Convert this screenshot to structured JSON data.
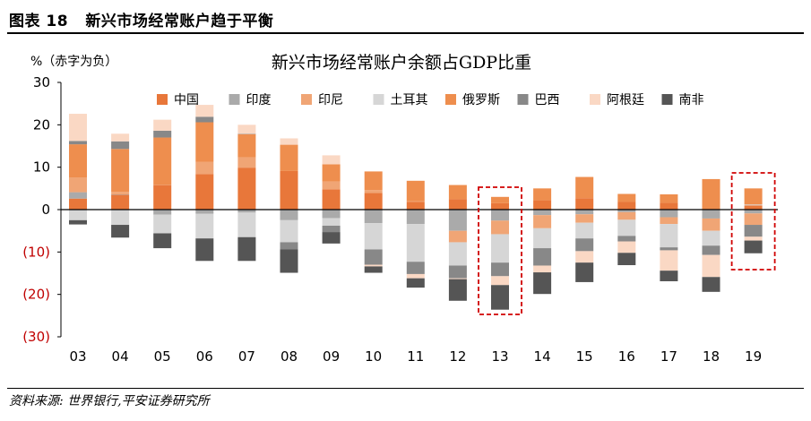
{
  "figure": {
    "label": "图表 18",
    "title": "新兴市场经常账户趋于平衡",
    "source": "资料来源: 世界银行,平安证券研究所"
  },
  "colors": {
    "China": "#E8773A",
    "India": "#AAAAAA",
    "Indonesia": "#F0A575",
    "Turkey": "#D6D6D6",
    "Russia": "#EE8E4E",
    "Brazil": "#888888",
    "Argentina": "#FAD8C4",
    "SouthAfrica": "#555555",
    "negative_label": "#C00000",
    "highlight": "#D00000"
  },
  "chart_data": {
    "type": "bar",
    "stacked": true,
    "title": "新兴市场经常账户余额占GDP比重",
    "ylabel": "%（赤字为负）",
    "ylim": [
      -30,
      30
    ],
    "yticks": [
      30,
      20,
      10,
      0,
      -10,
      -20,
      -30
    ],
    "ytick_labels": [
      "30",
      "20",
      "10",
      "0",
      "(10)",
      "(20)",
      "(30)"
    ],
    "categories": [
      "03",
      "04",
      "05",
      "06",
      "07",
      "08",
      "09",
      "10",
      "11",
      "12",
      "13",
      "14",
      "15",
      "16",
      "17",
      "18",
      "19"
    ],
    "highlighted_categories": [
      "13",
      "19"
    ],
    "legend_position": "top",
    "series": [
      {
        "name": "中国",
        "key": "China",
        "values": [
          2.6,
          3.5,
          5.8,
          8.4,
          9.9,
          9.1,
          4.8,
          3.9,
          1.8,
          2.5,
          1.5,
          2.2,
          2.7,
          1.8,
          1.6,
          0.2,
          1.0
        ]
      },
      {
        "name": "印度",
        "key": "India",
        "values": [
          1.5,
          0.1,
          -1.2,
          -1.0,
          -0.7,
          -2.5,
          -2.0,
          -3.2,
          -3.4,
          -5.0,
          -2.6,
          -1.3,
          -1.1,
          -0.6,
          -1.8,
          -2.1,
          -0.9
        ]
      },
      {
        "name": "印尼",
        "key": "Indonesia",
        "values": [
          3.5,
          0.6,
          0.1,
          2.9,
          2.4,
          0.0,
          1.8,
          0.7,
          0.2,
          -2.7,
          -3.2,
          -3.1,
          -2.0,
          -1.8,
          -1.6,
          -2.9,
          -2.7
        ]
      },
      {
        "name": "土耳其",
        "key": "Turkey",
        "values": [
          -2.5,
          -3.6,
          -4.4,
          -5.8,
          -5.8,
          -5.2,
          -1.8,
          -6.2,
          -8.9,
          -5.5,
          -6.7,
          -4.7,
          -3.7,
          -3.8,
          -5.5,
          -3.5,
          0.2
        ]
      },
      {
        "name": "俄罗斯",
        "key": "Russia",
        "values": [
          7.8,
          10.1,
          11.1,
          9.3,
          5.5,
          6.2,
          4.1,
          4.4,
          4.8,
          3.3,
          1.5,
          2.8,
          5.0,
          1.9,
          2.0,
          7.0,
          3.8
        ]
      },
      {
        "name": "巴西",
        "key": "Brazil",
        "values": [
          0.8,
          1.8,
          1.6,
          1.3,
          0.1,
          -1.7,
          -1.5,
          -3.6,
          -2.9,
          -3.0,
          -3.2,
          -4.1,
          -3.0,
          -1.3,
          -0.7,
          -2.2,
          -2.8
        ]
      },
      {
        "name": "阿根廷",
        "key": "Argentina",
        "values": [
          6.4,
          1.8,
          2.6,
          2.8,
          2.1,
          1.5,
          2.1,
          -0.4,
          -1.0,
          -0.2,
          -2.1,
          -1.6,
          -2.7,
          -2.7,
          -4.8,
          -5.2,
          -0.9
        ]
      },
      {
        "name": "南非",
        "key": "SouthAfrica",
        "values": [
          -1.0,
          -3.0,
          -3.5,
          -5.3,
          -5.6,
          -5.5,
          -2.7,
          -1.5,
          -2.2,
          -5.1,
          -5.8,
          -5.1,
          -4.6,
          -2.9,
          -2.5,
          -3.5,
          -3.0
        ]
      }
    ]
  }
}
